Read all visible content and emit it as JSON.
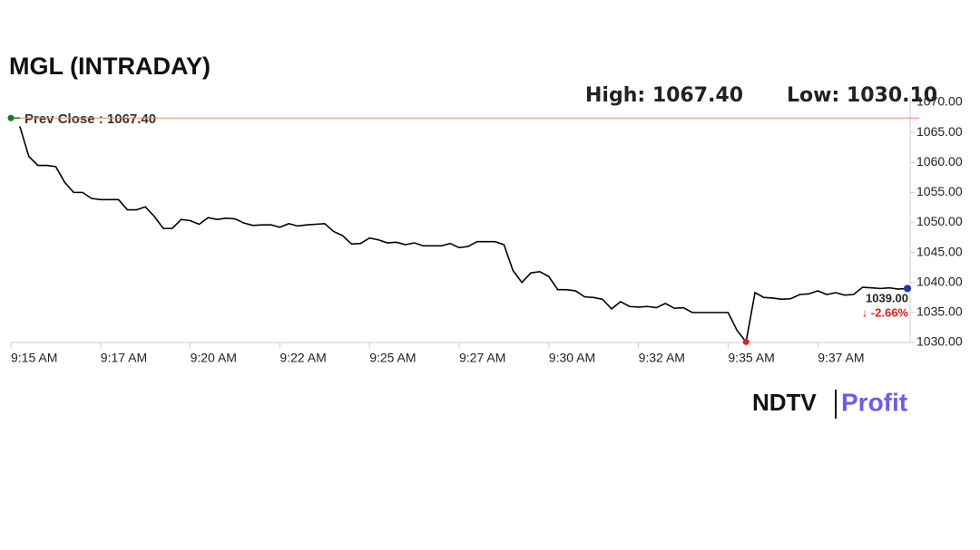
{
  "chart_data": {
    "type": "line",
    "title": "MGL (INTRADAY)",
    "high_label": "High: 1067.40",
    "low_label": "Low: 1030.10",
    "prev_close": 1067.4,
    "prev_close_label": "Prev Close : 1067.40",
    "prev_close_color": "#f08070",
    "last_label": "1039.00",
    "change_label": "↓ -2.66%",
    "categories": [
      "9:15 AM",
      null,
      null,
      null,
      null,
      null,
      null,
      null,
      null,
      null,
      "9:17 AM",
      null,
      null,
      null,
      null,
      null,
      null,
      null,
      null,
      null,
      "9:20 AM",
      null,
      null,
      null,
      null,
      null,
      null,
      null,
      null,
      null,
      "9:22 AM",
      null,
      null,
      null,
      null,
      null,
      null,
      null,
      null,
      null,
      "9:25 AM",
      null,
      null,
      null,
      null,
      null,
      null,
      null,
      null,
      null,
      "9:27 AM",
      null,
      null,
      null,
      null,
      null,
      null,
      null,
      null,
      null,
      "9:30 AM",
      null,
      null,
      null,
      null,
      null,
      null,
      null,
      null,
      null,
      "9:32 AM",
      null,
      null,
      null,
      null,
      null,
      null,
      null,
      null,
      null,
      "9:35 AM",
      null,
      null,
      null,
      null,
      null,
      null,
      null,
      null,
      null,
      "9:37 AM",
      null,
      null,
      null,
      null,
      null,
      null,
      null,
      null,
      null,
      null
    ],
    "series": [
      {
        "color": "#000000",
        "values": [
          null,
          1066,
          1061,
          1059.5,
          1059.5,
          1059.3,
          1056.7,
          1055,
          1055,
          1054,
          1053.8,
          1053.8,
          1053.8,
          1052.1,
          1052.1,
          1052.6,
          1051,
          1049,
          1049,
          1050.5,
          1050.3,
          1049.7,
          1050.8,
          1050.5,
          1050.7,
          1050.6,
          1049.9,
          1049.5,
          1049.6,
          1049.6,
          1049.2,
          1049.8,
          1049.4,
          1049.6,
          1049.7,
          1049.8,
          1048.5,
          1047.8,
          1046.4,
          1046.5,
          1047.4,
          1047.1,
          1046.6,
          1046.7,
          1046.3,
          1046.6,
          1046.1,
          1046.1,
          1046.1,
          1046.5,
          1045.8,
          1046,
          1046.8,
          1046.8,
          1046.8,
          1046.3,
          1042,
          1040,
          1041.6,
          1041.8,
          1041,
          1038.8,
          1038.8,
          1038.6,
          1037.6,
          1037.5,
          1037.2,
          1035.6,
          1036.8,
          1036,
          1035.9,
          1036,
          1035.8,
          1036.5,
          1035.7,
          1035.8,
          1035,
          1035,
          1035,
          1035,
          1035,
          1032,
          1030.1,
          1038.3,
          1037.5,
          1037.4,
          1037.2,
          1037.3,
          1038,
          1038.1,
          1038.6,
          1038,
          1038.3,
          1037.9,
          1038,
          1039.2,
          1039.1,
          1039,
          1039.1,
          1038.9,
          1039
        ]
      }
    ],
    "ylim": [
      1030,
      1070
    ],
    "yticks": [
      {
        "value": 1030,
        "label": "1030.00"
      },
      {
        "value": 1035,
        "label": "1035.00"
      },
      {
        "value": 1040,
        "label": "1040.00"
      },
      {
        "value": 1045,
        "label": "1045.00"
      },
      {
        "value": 1050,
        "label": "1050.00"
      },
      {
        "value": 1055,
        "label": "1055.00"
      },
      {
        "value": 1060,
        "label": "1060.00"
      },
      {
        "value": 1065,
        "label": "1065.00"
      },
      {
        "value": 1070,
        "label": "1070.00"
      }
    ],
    "grid": false
  },
  "logo": {
    "left": "NDTV",
    "right": "Profit"
  }
}
